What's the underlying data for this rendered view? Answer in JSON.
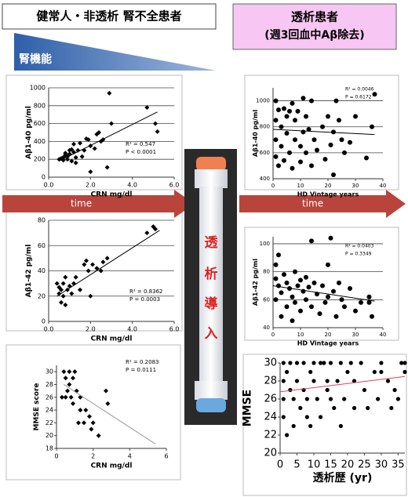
{
  "labels": {
    "left_header": "健常人・非透析 腎不全患者",
    "right_header": [
      "透析患者",
      "(週3回血中Aβ除去)"
    ],
    "kidney_function": "腎機能",
    "time": "time",
    "dialysis_start": [
      "透",
      "析",
      "導",
      "入"
    ]
  },
  "chart_data": [
    {
      "type": "scatter",
      "x_label": "CRN mg/dl",
      "y_label": "Aβ1-40 pg/ml",
      "marker": "diamond",
      "grid": true,
      "color": "#000000",
      "trend_color": "#000000",
      "annotations": [
        "R² = 0.547",
        "P < 0.0001"
      ],
      "xlim": [
        0,
        6
      ],
      "xticks": [
        {
          "value": 0,
          "label": "0.0"
        },
        {
          "value": 2,
          "label": "2.0"
        },
        {
          "value": 4,
          "label": "4.0"
        },
        {
          "value": 6,
          "label": "6.0"
        }
      ],
      "ylim": [
        0,
        1000
      ],
      "yticks": [
        0,
        200,
        400,
        600,
        800,
        1000
      ],
      "x": [
        0.5,
        0.6,
        0.7,
        0.7,
        0.8,
        0.8,
        0.9,
        0.9,
        1.0,
        1.0,
        1.1,
        1.1,
        1.2,
        1.2,
        1.3,
        1.3,
        1.4,
        1.5,
        1.6,
        1.7,
        1.8,
        1.9,
        2.0,
        2.0,
        2.2,
        2.3,
        2.4,
        2.5,
        2.6,
        2.8,
        2.9,
        3.0,
        4.7,
        5.1,
        5.2
      ],
      "y": [
        200,
        210,
        220,
        190,
        250,
        270,
        200,
        230,
        260,
        300,
        310,
        180,
        280,
        370,
        160,
        220,
        300,
        380,
        230,
        300,
        430,
        420,
        60,
        350,
        320,
        480,
        500,
        400,
        420,
        110,
        940,
        600,
        780,
        600,
        510
      ],
      "trendline": {
        "x": [
          0.5,
          5.2
        ],
        "y": [
          180,
          730
        ]
      }
    },
    {
      "type": "scatter",
      "x_label": "CRN mg/dl",
      "y_label": "Aβ1-42 pg/ml",
      "marker": "diamond",
      "grid": true,
      "color": "#000000",
      "trend_color": "#000000",
      "annotations": [
        "R² = 0.8362",
        "P = 0.0003"
      ],
      "xlim": [
        0,
        6
      ],
      "xticks": [
        {
          "value": 0,
          "label": "0.0"
        },
        {
          "value": 2,
          "label": "2.0"
        },
        {
          "value": 4,
          "label": "4.0"
        },
        {
          "value": 6,
          "label": "6.0"
        }
      ],
      "ylim": [
        0,
        80
      ],
      "yticks": [
        0,
        20,
        40,
        60,
        80
      ],
      "x": [
        0.4,
        0.5,
        0.5,
        0.6,
        0.6,
        0.7,
        0.7,
        0.8,
        0.8,
        0.9,
        1.0,
        1.1,
        1.2,
        1.3,
        1.5,
        1.7,
        1.8,
        1.9,
        2.0,
        2.1,
        2.3,
        2.5,
        2.6,
        2.8,
        4.7,
        5.0,
        5.1
      ],
      "y": [
        30,
        22,
        27,
        25,
        15,
        20,
        30,
        35,
        13,
        25,
        28,
        22,
        30,
        35,
        25,
        45,
        48,
        40,
        20,
        45,
        42,
        40,
        47,
        50,
        70,
        75,
        73
      ],
      "trendline": {
        "x": [
          0.4,
          5.3
        ],
        "y": [
          20,
          72
        ]
      }
    },
    {
      "type": "scatter",
      "x_label": "CRN mg/dl",
      "y_label": "MMSE score",
      "marker": "diamond",
      "grid": false,
      "color": "#000000",
      "trend_color": "#999999",
      "annotations": [
        "R² = 0.2083",
        "P = 0.0111"
      ],
      "xlim": [
        0,
        6
      ],
      "xticks": [
        0,
        2,
        4,
        6
      ],
      "ylim": [
        18,
        31
      ],
      "yticks": [
        18,
        20,
        22,
        24,
        26,
        28,
        30
      ],
      "x": [
        0.3,
        0.4,
        0.5,
        0.5,
        0.6,
        0.7,
        0.7,
        0.8,
        0.9,
        0.9,
        1.0,
        1.1,
        1.2,
        1.3,
        1.3,
        1.5,
        1.6,
        1.8,
        1.9,
        2.0,
        2.3,
        2.7,
        2.8
      ],
      "y": [
        26,
        30,
        29,
        26,
        27,
        30,
        28,
        26,
        25,
        29,
        30,
        27,
        22,
        24,
        26,
        22,
        24,
        23,
        21,
        22,
        20,
        27,
        25
      ],
      "trendline": {
        "x": [
          0.4,
          5.4
        ],
        "y": [
          28,
          18.7
        ]
      }
    },
    {
      "type": "scatter",
      "x_label": "HD Vintage years",
      "y_label": "Aβ1-40 pg/ml",
      "marker": "circle",
      "grid": true,
      "color": "#000000",
      "trend_color": "#000000",
      "annotations": [
        "R² = 0.0046",
        "P = 0.6172"
      ],
      "xlim": [
        0,
        40
      ],
      "xticks": [
        0,
        10,
        20,
        30,
        40
      ],
      "ylim": [
        400,
        1100
      ],
      "yticks": [
        400,
        600,
        800,
        1000
      ],
      "x": [
        1,
        1,
        1,
        1,
        2,
        2,
        3,
        3,
        4,
        4,
        5,
        5,
        6,
        6,
        7,
        7,
        8,
        8,
        9,
        10,
        10,
        11,
        11,
        12,
        12,
        13,
        14,
        14,
        15,
        16,
        18,
        19,
        20,
        21,
        22,
        22,
        23,
        24,
        25,
        26,
        28,
        30,
        34,
        36,
        37
      ],
      "y": [
        1000,
        850,
        700,
        570,
        500,
        930,
        800,
        650,
        940,
        540,
        880,
        750,
        920,
        600,
        980,
        480,
        850,
        700,
        920,
        650,
        530,
        1020,
        760,
        880,
        600,
        780,
        1000,
        500,
        700,
        620,
        800,
        550,
        880,
        660,
        430,
        760,
        1000,
        850,
        700,
        600,
        680,
        880,
        560,
        800,
        1050
      ],
      "trendline": {
        "x": [
          0,
          37
        ],
        "y": [
          780,
          740
        ]
      }
    },
    {
      "type": "scatter",
      "x_label": "HD Vintage years",
      "y_label": "Aβ1-42 pg/ml",
      "marker": "circle",
      "grid": true,
      "color": "#000000",
      "trend_color": "#000000",
      "annotations": [
        "R² = 0.0403",
        "P = 0.3349"
      ],
      "xlim": [
        0,
        40
      ],
      "xticks": [
        0,
        10,
        20,
        30,
        40
      ],
      "ylim": [
        40,
        105
      ],
      "yticks": [
        40,
        60,
        80,
        100
      ],
      "x": [
        1,
        1,
        1,
        2,
        2,
        3,
        3,
        4,
        5,
        5,
        6,
        7,
        7,
        8,
        8,
        9,
        10,
        10,
        11,
        12,
        12,
        13,
        14,
        14,
        15,
        16,
        17,
        18,
        19,
        20,
        20,
        21,
        22,
        23,
        24,
        25,
        26,
        28,
        30,
        32,
        35,
        35,
        36
      ],
      "y": [
        85,
        75,
        60,
        92,
        70,
        65,
        48,
        78,
        72,
        55,
        68,
        62,
        45,
        80,
        58,
        70,
        74,
        52,
        66,
        76,
        60,
        69,
        102,
        55,
        72,
        64,
        50,
        70,
        58,
        85,
        62,
        104,
        66,
        48,
        72,
        60,
        55,
        68,
        52,
        58,
        62,
        58,
        48
      ],
      "trendline": {
        "x": [
          0,
          37
        ],
        "y": [
          70,
          59
        ]
      }
    },
    {
      "type": "scatter",
      "x_label": "透析歴 (yr)",
      "y_label": "MMSE",
      "marker": "circle",
      "grid": false,
      "color": "#000000",
      "trend_color": "#e04050",
      "xlim": [
        0,
        37
      ],
      "xticks": [
        0,
        5,
        10,
        15,
        20,
        25,
        30,
        35
      ],
      "ylim": [
        20,
        30
      ],
      "yticks": [
        20,
        22,
        24,
        26,
        28,
        30
      ],
      "x": [
        1,
        1,
        1,
        1,
        2,
        2,
        3,
        3,
        4,
        4,
        5,
        5,
        6,
        7,
        7,
        8,
        8,
        9,
        9,
        10,
        10,
        11,
        12,
        12,
        13,
        14,
        14,
        15,
        15,
        16,
        17,
        18,
        18,
        19,
        20,
        21,
        22,
        22,
        24,
        25,
        26,
        28,
        29,
        30,
        30,
        32,
        33,
        34,
        35,
        36,
        37,
        37
      ],
      "y": [
        30,
        28,
        26,
        24,
        22,
        29,
        30,
        27,
        23,
        26,
        30,
        28,
        25,
        30,
        27,
        26,
        24,
        29,
        23,
        30,
        28,
        26,
        30,
        24,
        30,
        28,
        27,
        30,
        26,
        25,
        28,
        23,
        30,
        26,
        29,
        30,
        25,
        28,
        30,
        27,
        25,
        29,
        26,
        30,
        29,
        28,
        25,
        27,
        26,
        30,
        30,
        29
      ],
      "trendline": {
        "x": [
          0,
          37
        ],
        "y": [
          26.8,
          28.5
        ]
      }
    }
  ]
}
